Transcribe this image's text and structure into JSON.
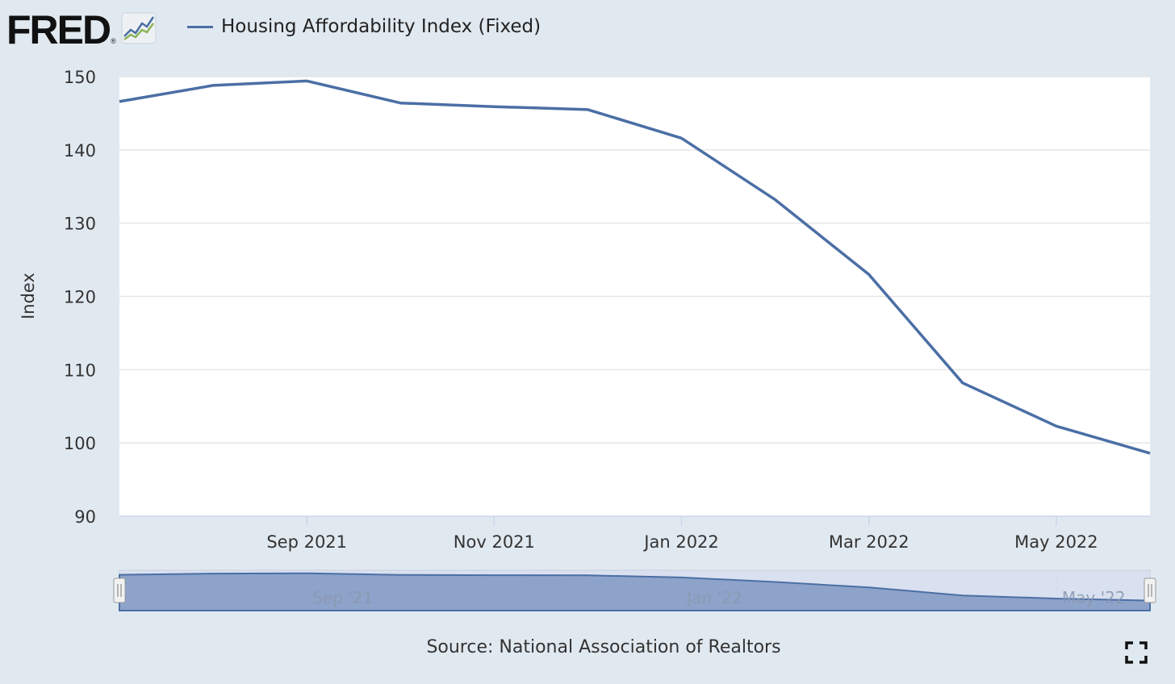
{
  "brand": {
    "name": "FRED",
    "reg_mark": "®"
  },
  "legend": {
    "series_name": "Housing Affordability Index (Fixed)"
  },
  "source": "Source: National Association of Realtors",
  "colors": {
    "line": "#4b6fa5",
    "navigator_fill": "#8ea3c9",
    "background": "#e1e9f0",
    "plot": "#ffffff"
  },
  "icons": {
    "fullscreen": "fullscreen-icon",
    "logo_graph": "graph-line-icon"
  },
  "chart_data": {
    "type": "line",
    "title": "",
    "xlabel": "",
    "ylabel": "Index",
    "ylim": [
      90,
      150
    ],
    "yticks": [
      90,
      100,
      110,
      120,
      130,
      140,
      150
    ],
    "grid": true,
    "x_range": [
      "2021-07",
      "2022-06"
    ],
    "xticks": [
      {
        "x": "2021-09",
        "label": "Sep 2021"
      },
      {
        "x": "2021-11",
        "label": "Nov 2021"
      },
      {
        "x": "2022-01",
        "label": "Jan 2022"
      },
      {
        "x": "2022-03",
        "label": "Mar 2022"
      },
      {
        "x": "2022-05",
        "label": "May 2022"
      }
    ],
    "series": [
      {
        "name": "Housing Affordability Index (Fixed)",
        "x": [
          "2021-07",
          "2021-08",
          "2021-09",
          "2021-10",
          "2021-11",
          "2021-12",
          "2022-01",
          "2022-02",
          "2022-03",
          "2022-04",
          "2022-05",
          "2022-06"
        ],
        "values": [
          146.6,
          148.8,
          149.4,
          146.4,
          145.9,
          145.5,
          141.6,
          133.2,
          123.0,
          108.2,
          102.3,
          98.6
        ]
      }
    ],
    "navigator": {
      "labels": [
        {
          "x": "2021-09",
          "label": "Sep '21"
        },
        {
          "x": "2022-01",
          "label": "Jan '22"
        },
        {
          "x": "2022-05",
          "label": "May '22"
        }
      ]
    }
  }
}
